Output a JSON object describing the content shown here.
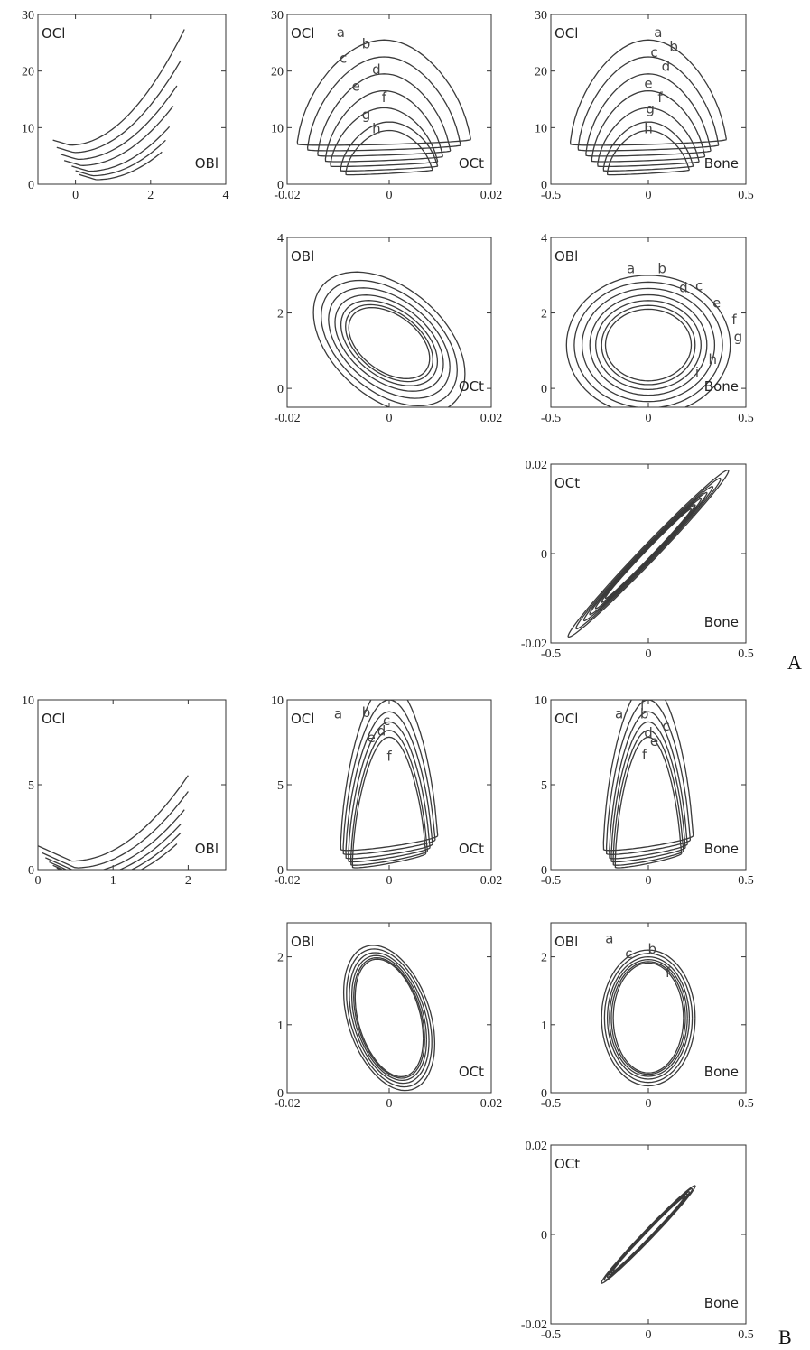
{
  "figure": {
    "panel_labels": [
      "A",
      "B"
    ]
  },
  "chart_data": [
    {
      "id": "A-OBl-OCl",
      "type": "line",
      "xlabel": "OBl",
      "ylabel": "OCl",
      "xlim": [
        -1,
        4
      ],
      "ylim": [
        0,
        30
      ],
      "xticks": [
        0,
        2,
        4
      ],
      "yticks": [
        0,
        10,
        20,
        30
      ],
      "curve_labels": [],
      "series": [
        {
          "shape": "parabola",
          "base": 7.8,
          "a": 2.2,
          "x0": -0.6,
          "x1": 2.9
        },
        {
          "shape": "parabola",
          "base": 6.5,
          "a": 2.0,
          "x0": -0.5,
          "x1": 2.8
        },
        {
          "shape": "parabola",
          "base": 5.3,
          "a": 1.85,
          "x0": -0.4,
          "x1": 2.7
        },
        {
          "shape": "parabola",
          "base": 4.2,
          "a": 1.75,
          "x0": -0.3,
          "x1": 2.6
        },
        {
          "shape": "parabola",
          "base": 3.2,
          "a": 1.7,
          "x0": -0.1,
          "x1": 2.5
        },
        {
          "shape": "parabola",
          "base": 2.4,
          "a": 1.65,
          "x0": 0.0,
          "x1": 2.4
        },
        {
          "shape": "parabola",
          "base": 1.7,
          "a": 1.6,
          "x0": 0.1,
          "x1": 2.3
        }
      ]
    },
    {
      "id": "A-OCt-OCl",
      "type": "line",
      "xlabel": "OCt",
      "ylabel": "OCl",
      "xlim": [
        -0.02,
        0.02
      ],
      "ylim": [
        0,
        30
      ],
      "xticks": [
        -0.02,
        0,
        0.02
      ],
      "yticks": [
        0,
        10,
        20,
        30
      ],
      "curve_labels": [
        {
          "t": "a",
          "x": -0.0095,
          "y": 26
        },
        {
          "t": "b",
          "x": -0.0045,
          "y": 24
        },
        {
          "t": "c",
          "x": -0.009,
          "y": 21.5
        },
        {
          "t": "d",
          "x": -0.0025,
          "y": 19.5
        },
        {
          "t": "e",
          "x": -0.0065,
          "y": 16.5
        },
        {
          "t": "f",
          "x": -0.001,
          "y": 14.5
        },
        {
          "t": "g",
          "x": -0.0045,
          "y": 11.5
        },
        {
          "t": "h",
          "x": -0.0025,
          "y": 9
        }
      ],
      "series": [
        {
          "shape": "loop",
          "cx": -0.001,
          "hw": 0.017,
          "ybot": 7.5,
          "ytop": 25.5
        },
        {
          "shape": "loop",
          "cx": -0.001,
          "hw": 0.015,
          "ybot": 6.5,
          "ytop": 22.5
        },
        {
          "shape": "loop",
          "cx": -0.001,
          "hw": 0.013,
          "ybot": 5.5,
          "ytop": 19.5
        },
        {
          "shape": "loop",
          "cx": -0.001,
          "hw": 0.0115,
          "ybot": 4.5,
          "ytop": 16.5
        },
        {
          "shape": "loop",
          "cx": -0.001,
          "hw": 0.0105,
          "ybot": 3.6,
          "ytop": 13.5
        },
        {
          "shape": "loop",
          "cx": 0.0,
          "hw": 0.0095,
          "ybot": 2.8,
          "ytop": 11
        },
        {
          "shape": "loop",
          "cx": 0.0,
          "hw": 0.0085,
          "ybot": 2.1,
          "ytop": 9.5
        }
      ]
    },
    {
      "id": "A-Bone-OCl",
      "type": "line",
      "xlabel": "Bone",
      "ylabel": "OCl",
      "xlim": [
        -0.5,
        0.5
      ],
      "ylim": [
        0,
        30
      ],
      "xticks": [
        -0.5,
        0,
        0.5
      ],
      "yticks": [
        0,
        10,
        20,
        30
      ],
      "curve_labels": [
        {
          "t": "a",
          "x": 0.05,
          "y": 26
        },
        {
          "t": "b",
          "x": 0.13,
          "y": 23.5
        },
        {
          "t": "c",
          "x": 0.03,
          "y": 22.5
        },
        {
          "t": "d",
          "x": 0.09,
          "y": 20
        },
        {
          "t": "e",
          "x": 0.0,
          "y": 17
        },
        {
          "t": "f",
          "x": 0.06,
          "y": 14.5
        },
        {
          "t": "g",
          "x": 0.01,
          "y": 12.5
        },
        {
          "t": "h",
          "x": 0.0,
          "y": 9
        }
      ],
      "series": [
        {
          "shape": "loop",
          "cx": 0.0,
          "hw": 0.4,
          "ybot": 7.5,
          "ytop": 25.5
        },
        {
          "shape": "loop",
          "cx": 0.0,
          "hw": 0.36,
          "ybot": 6.5,
          "ytop": 22.5
        },
        {
          "shape": "loop",
          "cx": 0.0,
          "hw": 0.32,
          "ybot": 5.5,
          "ytop": 19.5
        },
        {
          "shape": "loop",
          "cx": 0.0,
          "hw": 0.29,
          "ybot": 4.5,
          "ytop": 16.5
        },
        {
          "shape": "loop",
          "cx": 0.0,
          "hw": 0.26,
          "ybot": 3.6,
          "ytop": 13.5
        },
        {
          "shape": "loop",
          "cx": 0.0,
          "hw": 0.23,
          "ybot": 2.8,
          "ytop": 11
        },
        {
          "shape": "loop",
          "cx": 0.0,
          "hw": 0.21,
          "ybot": 2.1,
          "ytop": 9.5
        }
      ]
    },
    {
      "id": "A-OCt-OBl",
      "type": "line",
      "xlabel": "OCt",
      "ylabel": "OBl",
      "xlim": [
        -0.02,
        0.02
      ],
      "ylim": [
        -0.5,
        4
      ],
      "xticks": [
        -0.02,
        0,
        0.02
      ],
      "yticks": [
        0,
        2,
        4
      ],
      "curve_labels": [],
      "series": [
        {
          "shape": "ellipse",
          "cx": 0,
          "cy": 1.2,
          "rx": 0.0165,
          "ry": 1.7,
          "tilt": 1
        },
        {
          "shape": "ellipse",
          "cx": 0,
          "cy": 1.2,
          "rx": 0.0148,
          "ry": 1.5,
          "tilt": 1
        },
        {
          "shape": "ellipse",
          "cx": 0,
          "cy": 1.2,
          "rx": 0.0132,
          "ry": 1.32,
          "tilt": 1
        },
        {
          "shape": "ellipse",
          "cx": 0,
          "cy": 1.2,
          "rx": 0.0118,
          "ry": 1.15,
          "tilt": 1
        },
        {
          "shape": "ellipse",
          "cx": 0,
          "cy": 1.2,
          "rx": 0.0105,
          "ry": 1.02,
          "tilt": 1
        },
        {
          "shape": "ellipse",
          "cx": 0,
          "cy": 1.2,
          "rx": 0.0095,
          "ry": 0.92,
          "tilt": 1
        },
        {
          "shape": "ellipse",
          "cx": 0,
          "cy": 1.2,
          "rx": 0.0088,
          "ry": 0.85,
          "tilt": 1
        }
      ]
    },
    {
      "id": "A-Bone-OBl",
      "type": "line",
      "xlabel": "Bone",
      "ylabel": "OBl",
      "xlim": [
        -0.5,
        0.5
      ],
      "ylim": [
        -0.5,
        4
      ],
      "xticks": [
        -0.5,
        0,
        0.5
      ],
      "yticks": [
        0,
        2,
        4
      ],
      "curve_labels": [
        {
          "t": "a",
          "x": -0.09,
          "y": 3.05
        },
        {
          "t": "b",
          "x": 0.07,
          "y": 3.05
        },
        {
          "t": "d",
          "x": 0.18,
          "y": 2.55
        },
        {
          "t": "c",
          "x": 0.26,
          "y": 2.6
        },
        {
          "t": "e",
          "x": 0.35,
          "y": 2.15
        },
        {
          "t": "f",
          "x": 0.44,
          "y": 1.7
        },
        {
          "t": "g",
          "x": 0.46,
          "y": 1.25
        },
        {
          "t": "h",
          "x": 0.33,
          "y": 0.65
        },
        {
          "t": "i",
          "x": 0.25,
          "y": 0.3
        }
      ],
      "series": [
        {
          "shape": "ellipse",
          "cx": 0,
          "cy": 1.15,
          "rx": 0.42,
          "ry": 1.85,
          "tilt": 0
        },
        {
          "shape": "ellipse",
          "cx": 0,
          "cy": 1.15,
          "rx": 0.38,
          "ry": 1.67,
          "tilt": 0
        },
        {
          "shape": "ellipse",
          "cx": 0,
          "cy": 1.15,
          "rx": 0.34,
          "ry": 1.5,
          "tilt": 0
        },
        {
          "shape": "ellipse",
          "cx": 0,
          "cy": 1.15,
          "rx": 0.3,
          "ry": 1.33,
          "tilt": 0
        },
        {
          "shape": "ellipse",
          "cx": 0,
          "cy": 1.15,
          "rx": 0.27,
          "ry": 1.18,
          "tilt": 0
        },
        {
          "shape": "ellipse",
          "cx": 0,
          "cy": 1.15,
          "rx": 0.24,
          "ry": 1.05,
          "tilt": 0
        },
        {
          "shape": "ellipse",
          "cx": 0,
          "cy": 1.15,
          "rx": 0.22,
          "ry": 0.95,
          "tilt": 0
        }
      ]
    },
    {
      "id": "A-Bone-OCt",
      "type": "line",
      "xlabel": "Bone",
      "ylabel": "OCt",
      "xlim": [
        -0.5,
        0.5
      ],
      "ylim": [
        -0.02,
        0.02
      ],
      "xticks": [
        -0.5,
        0,
        0.5
      ],
      "yticks": [
        -0.02,
        0,
        0.02
      ],
      "curve_labels": [],
      "series": [
        {
          "shape": "diag",
          "L": 0.41,
          "W": 0.05
        },
        {
          "shape": "diag",
          "L": 0.37,
          "W": 0.043
        },
        {
          "shape": "diag",
          "L": 0.33,
          "W": 0.037
        },
        {
          "shape": "diag",
          "L": 0.3,
          "W": 0.032
        },
        {
          "shape": "diag",
          "L": 0.27,
          "W": 0.028
        },
        {
          "shape": "diag",
          "L": 0.24,
          "W": 0.024
        },
        {
          "shape": "diag",
          "L": 0.22,
          "W": 0.021
        }
      ]
    },
    {
      "id": "B-OBl-OCl",
      "type": "line",
      "xlabel": "OBl",
      "ylabel": "OCl",
      "xlim": [
        0,
        2.5
      ],
      "ylim": [
        0,
        10
      ],
      "xticks": [
        0,
        1,
        2
      ],
      "yticks": [
        0,
        5,
        10
      ],
      "curve_labels": [],
      "series": [
        {
          "shape": "parabola",
          "base": 1.4,
          "a": 2.1,
          "x0": 0.0,
          "x1": 2.0
        },
        {
          "shape": "parabola",
          "base": 1.0,
          "a": 2.0,
          "x0": 0.05,
          "x1": 2.0
        },
        {
          "shape": "parabola",
          "base": 0.7,
          "a": 1.9,
          "x0": 0.1,
          "x1": 1.95
        },
        {
          "shape": "parabola",
          "base": 0.45,
          "a": 1.85,
          "x0": 0.15,
          "x1": 1.9
        },
        {
          "shape": "parabola",
          "base": 0.25,
          "a": 1.8,
          "x0": 0.2,
          "x1": 1.9
        },
        {
          "shape": "parabola",
          "base": 0.1,
          "a": 1.75,
          "x0": 0.25,
          "x1": 1.85
        }
      ]
    },
    {
      "id": "B-OCt-OCl",
      "type": "line",
      "xlabel": "OCt",
      "ylabel": "OCl",
      "xlim": [
        -0.02,
        0.02
      ],
      "ylim": [
        0,
        10
      ],
      "xticks": [
        -0.02,
        0,
        0.02
      ],
      "yticks": [
        0,
        5,
        10
      ],
      "curve_labels": [
        {
          "t": "a",
          "x": -0.01,
          "y": 8.9
        },
        {
          "t": "b",
          "x": -0.0045,
          "y": 9.0
        },
        {
          "t": "c",
          "x": -0.0005,
          "y": 8.5
        },
        {
          "t": "d",
          "x": -0.0015,
          "y": 7.9
        },
        {
          "t": "e",
          "x": -0.0035,
          "y": 7.5
        },
        {
          "t": "f",
          "x": 0.0,
          "y": 6.4
        }
      ],
      "series": [
        {
          "shape": "loop",
          "cx": 0.0,
          "hw": 0.0095,
          "ybot": 1.6,
          "ytop": 11
        },
        {
          "shape": "loop",
          "cx": 0.0,
          "hw": 0.009,
          "ybot": 1.35,
          "ytop": 10
        },
        {
          "shape": "loop",
          "cx": 0.0,
          "hw": 0.0085,
          "ybot": 1.1,
          "ytop": 9.3
        },
        {
          "shape": "loop",
          "cx": 0.0,
          "hw": 0.008,
          "ybot": 0.9,
          "ytop": 8.7
        },
        {
          "shape": "loop",
          "cx": 0.0,
          "hw": 0.0075,
          "ybot": 0.7,
          "ytop": 8.2
        },
        {
          "shape": "loop",
          "cx": 0.0,
          "hw": 0.0072,
          "ybot": 0.55,
          "ytop": 7.8
        }
      ]
    },
    {
      "id": "B-Bone-OCl",
      "type": "line",
      "xlabel": "Bone",
      "ylabel": "OCl",
      "xlim": [
        -0.5,
        0.5
      ],
      "ylim": [
        0,
        10
      ],
      "xticks": [
        -0.5,
        0,
        0.5
      ],
      "yticks": [
        0,
        5,
        10
      ],
      "curve_labels": [
        {
          "t": "a",
          "x": -0.15,
          "y": 8.9
        },
        {
          "t": "f",
          "x": -0.03,
          "y": 9.4
        },
        {
          "t": "b",
          "x": -0.02,
          "y": 8.9
        },
        {
          "t": "c",
          "x": 0.09,
          "y": 8.2
        },
        {
          "t": "d",
          "x": 0.0,
          "y": 7.8
        },
        {
          "t": "e",
          "x": 0.03,
          "y": 7.3
        },
        {
          "t": "f",
          "x": -0.02,
          "y": 6.5
        }
      ],
      "series": [
        {
          "shape": "loop",
          "cx": 0.0,
          "hw": 0.23,
          "ybot": 1.6,
          "ytop": 11
        },
        {
          "shape": "loop",
          "cx": 0.0,
          "hw": 0.215,
          "ybot": 1.35,
          "ytop": 10
        },
        {
          "shape": "loop",
          "cx": 0.0,
          "hw": 0.2,
          "ybot": 1.1,
          "ytop": 9.3
        },
        {
          "shape": "loop",
          "cx": 0.0,
          "hw": 0.19,
          "ybot": 0.9,
          "ytop": 8.7
        },
        {
          "shape": "loop",
          "cx": 0.0,
          "hw": 0.18,
          "ybot": 0.7,
          "ytop": 8.2
        },
        {
          "shape": "loop",
          "cx": 0.0,
          "hw": 0.17,
          "ybot": 0.55,
          "ytop": 7.8
        }
      ]
    },
    {
      "id": "B-OCt-OBl",
      "type": "line",
      "xlabel": "OCt",
      "ylabel": "OBl",
      "xlim": [
        -0.02,
        0.02
      ],
      "ylim": [
        0,
        2.5
      ],
      "xticks": [
        -0.02,
        0,
        0.02
      ],
      "yticks": [
        0,
        1,
        2
      ],
      "curve_labels": [],
      "series": [
        {
          "shape": "ellipse",
          "cx": 0,
          "cy": 1.1,
          "rx": 0.0095,
          "ry": 1.0,
          "tilt": 2
        },
        {
          "shape": "ellipse",
          "cx": 0,
          "cy": 1.1,
          "rx": 0.0089,
          "ry": 0.95,
          "tilt": 2
        },
        {
          "shape": "ellipse",
          "cx": 0,
          "cy": 1.1,
          "rx": 0.0083,
          "ry": 0.9,
          "tilt": 2
        },
        {
          "shape": "ellipse",
          "cx": 0,
          "cy": 1.1,
          "rx": 0.0078,
          "ry": 0.86,
          "tilt": 2
        },
        {
          "shape": "ellipse",
          "cx": 0,
          "cy": 1.1,
          "rx": 0.0074,
          "ry": 0.83,
          "tilt": 2
        },
        {
          "shape": "ellipse",
          "cx": 0,
          "cy": 1.1,
          "rx": 0.0071,
          "ry": 0.81,
          "tilt": 2
        }
      ]
    },
    {
      "id": "B-Bone-OBl",
      "type": "line",
      "xlabel": "Bone",
      "ylabel": "OBl",
      "xlim": [
        -0.5,
        0.5
      ],
      "ylim": [
        0,
        2.5
      ],
      "xticks": [
        -0.5,
        0,
        0.5
      ],
      "yticks": [
        0,
        1,
        2
      ],
      "curve_labels": [
        {
          "t": "a",
          "x": -0.2,
          "y": 2.2
        },
        {
          "t": "b",
          "x": 0.02,
          "y": 2.05
        },
        {
          "t": "c",
          "x": -0.1,
          "y": 1.98
        },
        {
          "t": "f",
          "x": 0.1,
          "y": 1.7
        }
      ],
      "series": [
        {
          "shape": "ellipse",
          "cx": 0,
          "cy": 1.1,
          "rx": 0.24,
          "ry": 1.0,
          "tilt": 0
        },
        {
          "shape": "ellipse",
          "cx": 0,
          "cy": 1.1,
          "rx": 0.225,
          "ry": 0.95,
          "tilt": 0
        },
        {
          "shape": "ellipse",
          "cx": 0,
          "cy": 1.1,
          "rx": 0.21,
          "ry": 0.9,
          "tilt": 0
        },
        {
          "shape": "ellipse",
          "cx": 0,
          "cy": 1.1,
          "rx": 0.2,
          "ry": 0.86,
          "tilt": 0
        },
        {
          "shape": "ellipse",
          "cx": 0,
          "cy": 1.1,
          "rx": 0.19,
          "ry": 0.83,
          "tilt": 0
        },
        {
          "shape": "ellipse",
          "cx": 0,
          "cy": 1.1,
          "rx": 0.18,
          "ry": 0.81,
          "tilt": 0
        }
      ]
    },
    {
      "id": "B-Bone-OCt",
      "type": "line",
      "xlabel": "Bone",
      "ylabel": "OCt",
      "xlim": [
        -0.5,
        0.5
      ],
      "ylim": [
        -0.02,
        0.02
      ],
      "xticks": [
        -0.5,
        0,
        0.5
      ],
      "yticks": [
        -0.02,
        0,
        0.02
      ],
      "curve_labels": [],
      "series": [
        {
          "shape": "diag",
          "L": 0.24,
          "W": 0.03
        },
        {
          "shape": "diag",
          "L": 0.225,
          "W": 0.026
        },
        {
          "shape": "diag",
          "L": 0.21,
          "W": 0.023
        },
        {
          "shape": "diag",
          "L": 0.2,
          "W": 0.02
        },
        {
          "shape": "diag",
          "L": 0.19,
          "W": 0.018
        },
        {
          "shape": "diag",
          "L": 0.18,
          "W": 0.016
        }
      ]
    }
  ]
}
